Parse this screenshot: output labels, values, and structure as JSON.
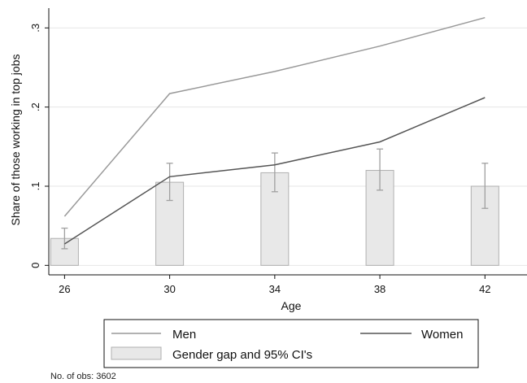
{
  "chart_data": {
    "type": "line",
    "title": "",
    "xlabel": "Age",
    "ylabel": "Share of those working in top jobs",
    "x": [
      26,
      30,
      34,
      38,
      42
    ],
    "x_ticks": [
      "26",
      "30",
      "34",
      "38",
      "42"
    ],
    "y_ticks": [
      {
        "value": 0,
        "label": "0"
      },
      {
        "value": 0.1,
        "label": ".1"
      },
      {
        "value": 0.2,
        "label": ".2"
      },
      {
        "value": 0.3,
        "label": ".3"
      }
    ],
    "xlim": [
      25.4,
      43.6
    ],
    "ylim": [
      -0.012,
      0.325
    ],
    "grid": true,
    "series": [
      {
        "name": "Men",
        "kind": "line",
        "color": "#999999",
        "values": [
          0.062,
          0.217,
          0.245,
          0.277,
          0.313
        ]
      },
      {
        "name": "Women",
        "kind": "line",
        "color": "#555555",
        "values": [
          0.027,
          0.112,
          0.127,
          0.156,
          0.212
        ]
      },
      {
        "name": "Gender gap and 95% CI's",
        "kind": "bar",
        "color": "#e8e8e8",
        "values": [
          0.034,
          0.105,
          0.117,
          0.12,
          0.1
        ],
        "ci_low": [
          0.021,
          0.082,
          0.093,
          0.095,
          0.072
        ],
        "ci_high": [
          0.047,
          0.129,
          0.142,
          0.147,
          0.129
        ]
      }
    ],
    "legend_position": "bottom"
  },
  "note": "No. of obs: 3602"
}
